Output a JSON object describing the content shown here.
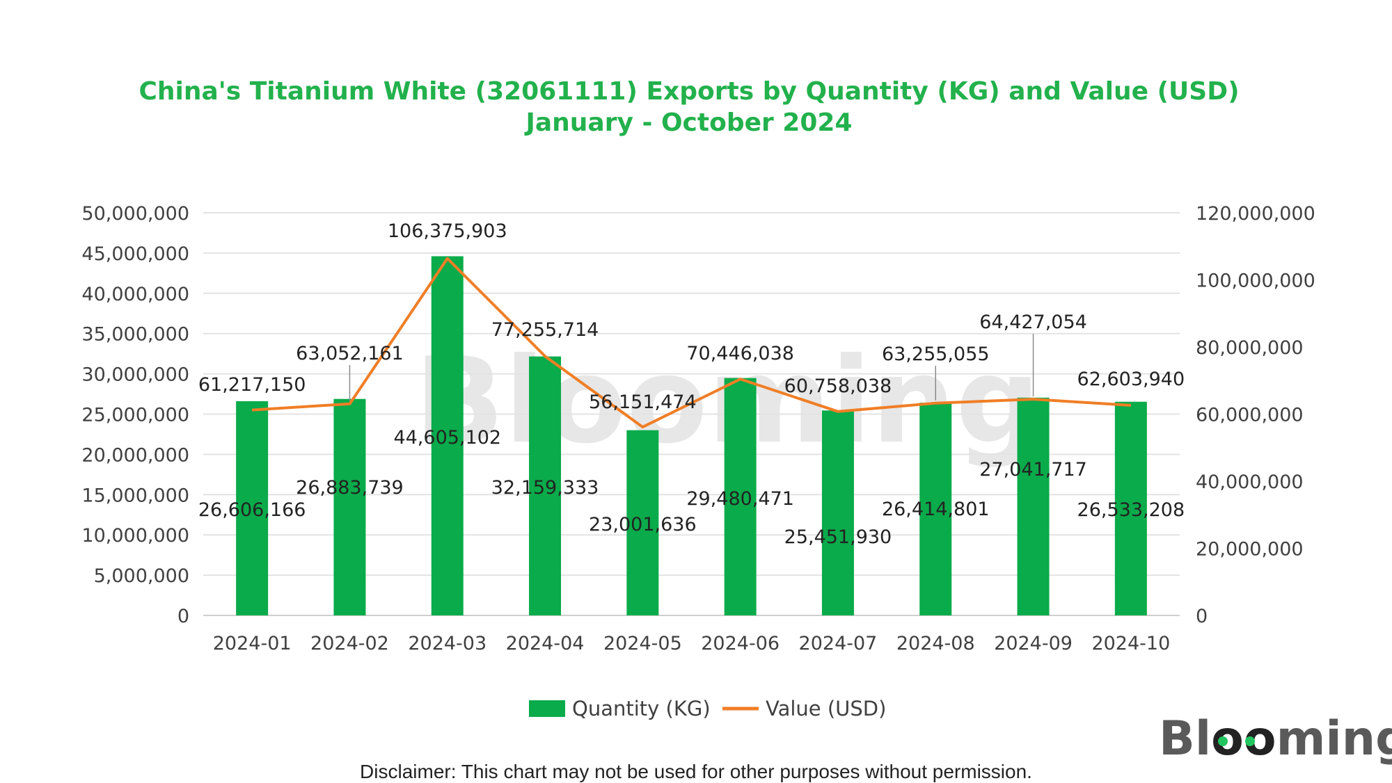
{
  "chart_data": {
    "type": "bar",
    "title": "China's Titanium White (32061111) Exports by Quantity (KG) and Value (USD)",
    "subtitle": "January - October 2024",
    "categories": [
      "2024-01",
      "2024-02",
      "2024-03",
      "2024-04",
      "2024-05",
      "2024-06",
      "2024-07",
      "2024-08",
      "2024-09",
      "2024-10"
    ],
    "series": [
      {
        "name": "Quantity (KG)",
        "type": "bar",
        "axis": "left",
        "color": "#0aab4a",
        "values": [
          26606166,
          26883739,
          44605102,
          32159333,
          23001636,
          29480471,
          25451930,
          26414801,
          27041717,
          26533208
        ],
        "labels": [
          "26,606,166",
          "26,883,739",
          "44,605,102",
          "32,159,333",
          "23,001,636",
          "29,480,471",
          "25,451,930",
          "26,414,801",
          "27,041,717",
          "26,533,208"
        ]
      },
      {
        "name": "Value (USD)",
        "type": "line",
        "axis": "right",
        "color": "#f07e26",
        "values": [
          61217150,
          63052161,
          106375903,
          77255714,
          56151474,
          70446038,
          60758038,
          63255055,
          64427054,
          62603940
        ],
        "labels": [
          "61,217,150",
          "63,052,161",
          "106,375,903",
          "77,255,714",
          "56,151,474",
          "70,446,038",
          "60,758,038",
          "63,255,055",
          "64,427,054",
          "62,603,940"
        ]
      }
    ],
    "y_left": {
      "min": 0,
      "max": 50000000,
      "ticks": [
        0,
        5000000,
        10000000,
        15000000,
        20000000,
        25000000,
        30000000,
        35000000,
        40000000,
        45000000,
        50000000
      ],
      "tick_labels": [
        "0",
        "5,000,000",
        "10,000,000",
        "15,000,000",
        "20,000,000",
        "25,000,000",
        "30,000,000",
        "35,000,000",
        "40,000,000",
        "45,000,000",
        "50,000,000"
      ]
    },
    "y_right": {
      "min": 0,
      "max": 120000000,
      "ticks": [
        0,
        20000000,
        40000000,
        60000000,
        80000000,
        100000000,
        120000000
      ],
      "tick_labels": [
        "0",
        "20,000,000",
        "40,000,000",
        "60,000,000",
        "80,000,000",
        "100,000,000",
        "120,000,000"
      ]
    },
    "grid": true,
    "legend": "bottom",
    "legend_entries": [
      "Quantity (KG)",
      "Value (USD)"
    ]
  },
  "branding": {
    "watermark": "Blooming",
    "logo": "Blooming"
  },
  "disclaimer": "Disclaimer: This chart may not be used for other purposes without permission."
}
